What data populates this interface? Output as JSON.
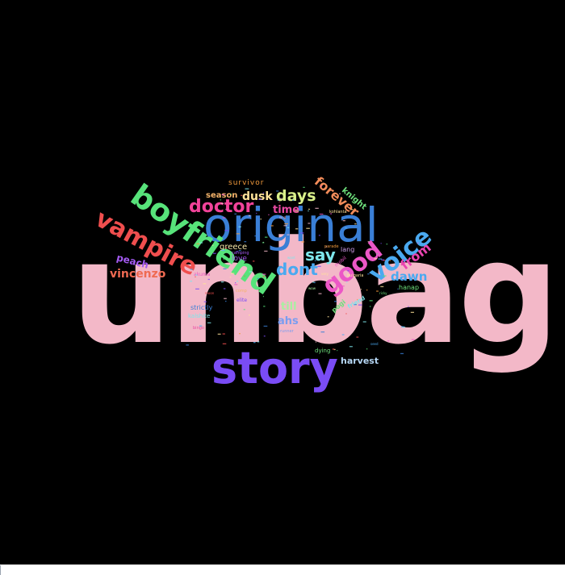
{
  "wordcloud": {
    "background": "#000000",
    "words": [
      {
        "text": "unbag",
        "color": "#f3b8c8"
      },
      {
        "text": "story",
        "color": "#7a4cf5"
      },
      {
        "text": "original",
        "color": "#3a7fd6"
      },
      {
        "text": "boyfriend",
        "color": "#57e37a"
      },
      {
        "text": "vampire",
        "color": "#f04e4e"
      },
      {
        "text": "voice",
        "color": "#4aa9f0"
      },
      {
        "text": "good",
        "color": "#ec57c6"
      },
      {
        "text": "doctor",
        "color": "#f2439a"
      },
      {
        "text": "dont",
        "color": "#4aa9f0"
      },
      {
        "text": "say",
        "color": "#7ee7ec"
      },
      {
        "text": "days",
        "color": "#d9f08a"
      },
      {
        "text": "dusk",
        "color": "#ffe39a"
      },
      {
        "text": "forever",
        "color": "#f28c5a"
      },
      {
        "text": "from",
        "color": "#e944b0"
      },
      {
        "text": "dawn",
        "color": "#4aa9f0"
      },
      {
        "text": "vincenzo",
        "color": "#ef6a52"
      },
      {
        "text": "peach",
        "color": "#a35af0"
      },
      {
        "text": "time",
        "color": "#e94aa2"
      },
      {
        "text": "season",
        "color": "#f4b36a"
      },
      {
        "text": "survivor",
        "color": "#f29a3c"
      },
      {
        "text": "knight",
        "color": "#6ee07c"
      },
      {
        "text": "till",
        "color": "#a8f0a0"
      },
      {
        "text": "ahs",
        "color": "#7a9df0"
      },
      {
        "text": "harvest",
        "color": "#b6d7f5"
      },
      {
        "text": "greece",
        "color": "#f6e7a9"
      },
      {
        "text": "love",
        "color": "#a35af0"
      },
      {
        "text": "lang",
        "color": "#cc9be6"
      },
      {
        "text": "pogi",
        "color": "#6ee07c"
      },
      {
        "text": "hanap",
        "color": "#6ee07c"
      },
      {
        "text": "strictly",
        "color": "#3a7fd6"
      },
      {
        "text": "kalshite",
        "color": "#7ee7ec"
      },
      {
        "text": "akuma",
        "color": "#ec57c6"
      },
      {
        "text": "dying",
        "color": "#6ee07c"
      },
      {
        "text": "friend",
        "color": "#7ee7ec"
      },
      {
        "text": "kohlanta",
        "color": "#ffe39a"
      },
      {
        "text": "parade",
        "color": "#f29a3c"
      },
      {
        "text": "bulgaria",
        "color": "#ffe39a"
      },
      {
        "text": "mobil",
        "color": "#ec57c6"
      },
      {
        "text": "elite",
        "color": "#7a4cf5"
      },
      {
        "text": "runner",
        "color": "#7a9df0"
      },
      {
        "text": "camping",
        "color": "#a35af0"
      },
      {
        "text": "comp",
        "color": "#f4b36a"
      },
      {
        "text": "bingo",
        "color": "#e94aa2"
      },
      {
        "text": "want",
        "color": "#7ee7ec"
      },
      {
        "text": "very",
        "color": "#ffe39a"
      },
      {
        "text": "ricky",
        "color": "#6ee07c"
      },
      {
        "text": "moon",
        "color": "#f04e4e"
      },
      {
        "text": "seed",
        "color": "#4aa9f0"
      },
      {
        "text": "wow",
        "color": "#a8f0a0"
      },
      {
        "text": "sing",
        "color": "#f3b8c8"
      }
    ]
  }
}
